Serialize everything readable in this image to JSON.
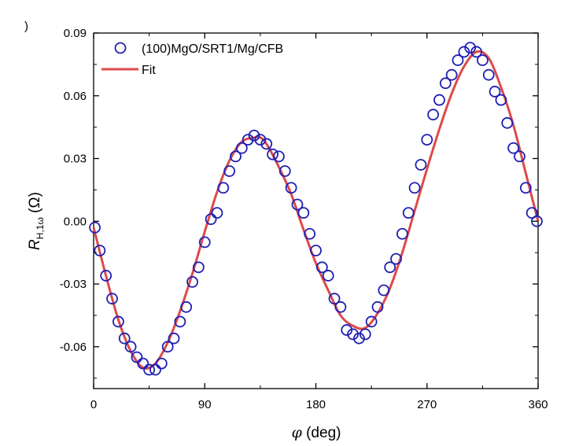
{
  "panel_label": ")",
  "chart_data": {
    "type": "scatter",
    "x_var": "φ",
    "x_unit": " (deg)",
    "y_var": "R",
    "y_sub": "H,1ω",
    "y_unit": " (Ω)",
    "xlim": [
      0,
      360
    ],
    "ylim": [
      -0.08,
      0.09
    ],
    "x_ticks": [
      0,
      90,
      180,
      270,
      360
    ],
    "y_ticks": [
      -0.06,
      -0.03,
      0.0,
      0.03,
      0.06,
      0.09
    ],
    "y_tick_labels": [
      "-0.06",
      "-0.03",
      "0.00",
      "0.03",
      "0.06",
      "0.09"
    ],
    "grid": false,
    "legend": {
      "position": "top-left"
    },
    "colors": {
      "marker": "#1f1fb4",
      "fit": "#dc4a4a"
    },
    "series": [
      {
        "name": "(100)MgO/SRT1/Mg/CFB",
        "kind": "markers",
        "x": [
          1,
          5,
          10,
          15,
          20,
          25,
          30,
          35,
          40,
          45,
          50,
          55,
          60,
          65,
          70,
          75,
          80,
          85,
          90,
          95,
          100,
          105,
          110,
          115,
          120,
          125,
          130,
          135,
          140,
          145,
          150,
          155,
          160,
          165,
          170,
          175,
          180,
          185,
          190,
          195,
          200,
          205,
          210,
          215,
          220,
          225,
          230,
          235,
          240,
          245,
          250,
          255,
          260,
          265,
          270,
          275,
          280,
          285,
          290,
          295,
          300,
          305,
          310,
          315,
          320,
          325,
          330,
          335,
          340,
          345,
          350,
          355,
          359
        ],
        "y": [
          -0.003,
          -0.014,
          -0.026,
          -0.037,
          -0.048,
          -0.056,
          -0.06,
          -0.065,
          -0.068,
          -0.071,
          -0.071,
          -0.068,
          -0.06,
          -0.056,
          -0.048,
          -0.041,
          -0.029,
          -0.022,
          -0.01,
          0.001,
          0.004,
          0.016,
          0.024,
          0.031,
          0.035,
          0.039,
          0.041,
          0.039,
          0.037,
          0.032,
          0.031,
          0.024,
          0.016,
          0.008,
          0.004,
          -0.006,
          -0.014,
          -0.022,
          -0.026,
          -0.037,
          -0.041,
          -0.052,
          -0.054,
          -0.056,
          -0.054,
          -0.048,
          -0.041,
          -0.033,
          -0.022,
          -0.018,
          -0.006,
          0.004,
          0.016,
          0.027,
          0.039,
          0.051,
          0.058,
          0.066,
          0.07,
          0.077,
          0.081,
          0.083,
          0.081,
          0.077,
          0.07,
          0.062,
          0.058,
          0.047,
          0.035,
          0.031,
          0.016,
          0.004,
          0.0
        ]
      },
      {
        "name": "Fit",
        "kind": "line",
        "x": [
          0,
          10,
          20,
          30,
          40,
          50,
          60,
          70,
          80,
          90,
          100,
          110,
          120,
          130,
          135,
          140,
          150,
          160,
          170,
          180,
          190,
          200,
          210,
          220,
          230,
          240,
          250,
          260,
          270,
          280,
          290,
          300,
          310,
          320,
          330,
          340,
          350,
          360
        ],
        "y": [
          -0.003,
          -0.026,
          -0.047,
          -0.062,
          -0.07,
          -0.068,
          -0.058,
          -0.043,
          -0.025,
          -0.005,
          0.014,
          0.029,
          0.038,
          0.04,
          0.04,
          0.037,
          0.026,
          0.013,
          -0.004,
          -0.02,
          -0.033,
          -0.045,
          -0.05,
          -0.051,
          -0.044,
          -0.032,
          -0.015,
          0.005,
          0.025,
          0.044,
          0.061,
          0.074,
          0.081,
          0.078,
          0.064,
          0.046,
          0.023,
          0.0
        ]
      }
    ]
  }
}
